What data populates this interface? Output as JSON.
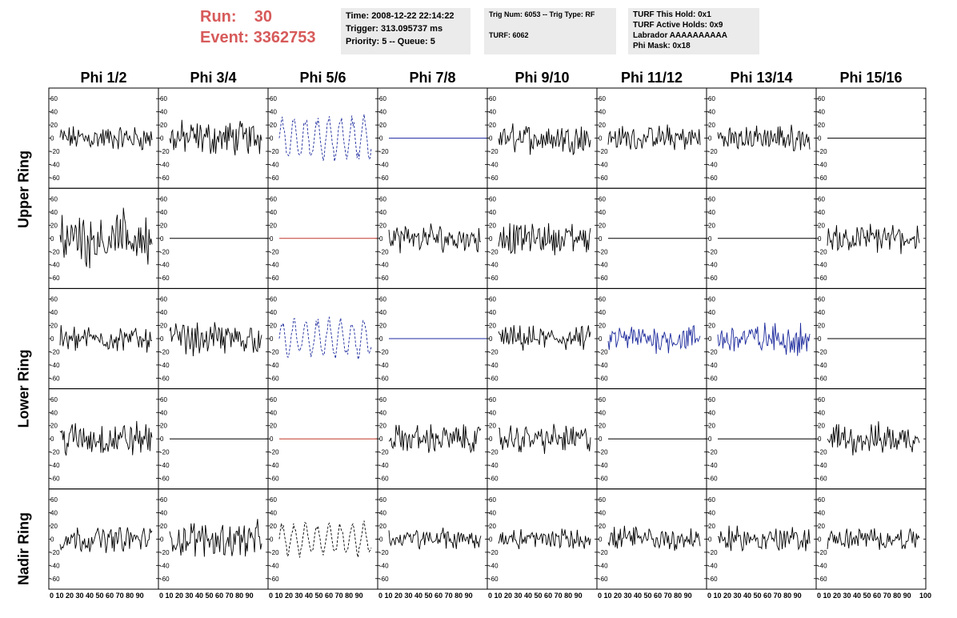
{
  "header": {
    "run_label": "Run:",
    "run_value": "30",
    "event_label": "Event:",
    "event_value": "3362753",
    "time": "Time: 2008-12-22 22:14:22",
    "trigger": "Trigger: 313.095737 ms",
    "priority": "Priority: 5 -- Queue: 5",
    "trig_num": "Trig Num: 6053 -- Trig Type: RF",
    "turf": "TURF: 6062",
    "turf_this_hold": "TURF This Hold: 0x1",
    "turf_active_holds": "TURF Active Holds: 0x9",
    "labrador": "Labrador AAAAAAAAAA",
    "phi_mask": "Phi Mask: 0x18"
  },
  "columns": [
    "Phi 1/2",
    "Phi 3/4",
    "Phi 5/6",
    "Phi 7/8",
    "Phi 9/10",
    "Phi 11/12",
    "Phi 13/14",
    "Phi 15/16"
  ],
  "ring_labels": [
    "Upper Ring",
    "Lower Ring",
    "Nadir Ring"
  ],
  "colors": {
    "title_red": "#d75a5a",
    "info_bg": "#ebebeb",
    "trace_black": "#000000",
    "trace_blue": "#1c2a9c",
    "trace_red": "#c0392b"
  },
  "chart_data": {
    "type": "line",
    "xlim": [
      0,
      100
    ],
    "ylim": [
      -70,
      70
    ],
    "x_ticks": [
      "0",
      "10",
      "20",
      "30",
      "40",
      "50",
      "60",
      "70",
      "80",
      "90",
      "100"
    ],
    "x_tick_text": "0 10 20 30 40 50 60 70 80 90",
    "x_tick_end": "100",
    "y_ticks": [
      "60",
      "40",
      "20",
      "0",
      "-20",
      "-40",
      "-60"
    ],
    "rows": [
      [
        "noisy:black:14",
        "noisy:black:20",
        "dashed:blue:32",
        "flat:blue",
        "noisy:black:16",
        "noisy:black:14",
        "noisy:black:14",
        "flat:black"
      ],
      [
        "noisy:black:30",
        "flat:black",
        "flat:red",
        "noisy:black:16",
        "noisy:black:18",
        "flat:black",
        "flat:black",
        "noisy:black:16"
      ],
      [
        "noisy:black:14",
        "noisy:black:18",
        "dashed:blue:28",
        "flat:blue",
        "noisy:black:14",
        "noisy:blue:16",
        "noisy:blue:18",
        "flat:black"
      ],
      [
        "noisy:black:20",
        "flat:black",
        "flat:red",
        "noisy:black:16",
        "noisy:black:16",
        "flat:black",
        "flat:black",
        "noisy:black:18"
      ],
      [
        "noisy:black:14",
        "noisy:black:20",
        "dashed:black:24",
        "noisy:black:12",
        "noisy:black:12",
        "noisy:black:14",
        "noisy:black:14",
        "noisy:black:12"
      ]
    ]
  }
}
